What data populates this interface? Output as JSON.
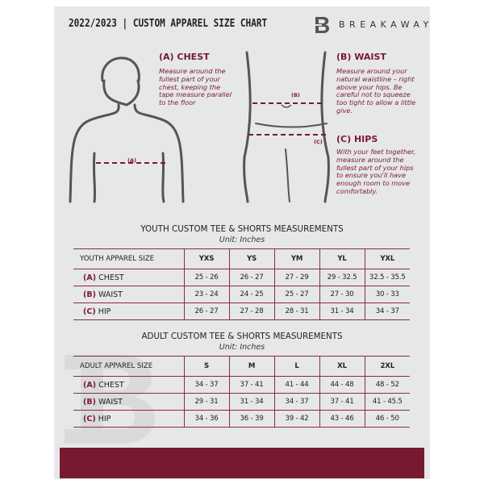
{
  "header": {
    "title": "2022/2023  |  CUSTOM APPAREL SIZE CHART",
    "brand": "BREAKAWAY",
    "logo_letter": "B"
  },
  "guide": {
    "chest": {
      "heading": "(A) CHEST",
      "text": "Measure around the fullest part of your chest, keeping the tape measure parallel to the floor",
      "marker": "(A)"
    },
    "waist": {
      "heading": "(B) WAIST",
      "text": "Measure around your natural waistline – right above your hips. Be careful not to squeeze too tight to allow a little give.",
      "marker": "(B)"
    },
    "hips": {
      "heading": "(C) HIPS",
      "text": "With your feet together, measure around the fullest part of your hips to ensure you'll have enough room to move comfortably.",
      "marker": "(C)"
    }
  },
  "youth": {
    "title": "YOUTH CUSTOM TEE & SHORTS MEASUREMENTS",
    "unit": "Unit: Inches",
    "header": "YOUTH APPAREL SIZE",
    "sizes": [
      "YXS",
      "YS",
      "YM",
      "YL",
      "YXL"
    ],
    "rows": [
      {
        "letter": "(A)",
        "name": "CHEST",
        "values": [
          "25 - 26",
          "26 - 27",
          "27 - 29",
          "29 - 32.5",
          "32.5 - 35.5"
        ]
      },
      {
        "letter": "(B)",
        "name": "WAIST",
        "values": [
          "23 - 24",
          "24 - 25",
          "25 - 27",
          "27 - 30",
          "30 - 33"
        ]
      },
      {
        "letter": "(C)",
        "name": "HIP",
        "values": [
          "26 - 27",
          "27 - 28",
          "28 - 31",
          "31 - 34",
          "34 - 37"
        ]
      }
    ]
  },
  "adult": {
    "title": "ADULT CUSTOM TEE & SHORTS MEASUREMENTS",
    "unit": "Unit: Inches",
    "header": "ADULT APPAREL SIZE",
    "sizes": [
      "S",
      "M",
      "L",
      "XL",
      "2XL"
    ],
    "rows": [
      {
        "letter": "(A)",
        "name": "CHEST",
        "values": [
          "34 - 37",
          "37 - 41",
          "41 - 44",
          "44 - 48",
          "48 - 52"
        ]
      },
      {
        "letter": "(B)",
        "name": "WAIST",
        "values": [
          "29 - 31",
          "31 - 34",
          "34 - 37",
          "37 - 41",
          "41 - 45.5"
        ]
      },
      {
        "letter": "(C)",
        "name": "HIP",
        "values": [
          "34 - 36",
          "36 - 39",
          "39 - 42",
          "43 - 46",
          "46 - 50"
        ]
      }
    ]
  },
  "colors": {
    "accent": "#771a30",
    "panel": "#e6e7e9"
  }
}
